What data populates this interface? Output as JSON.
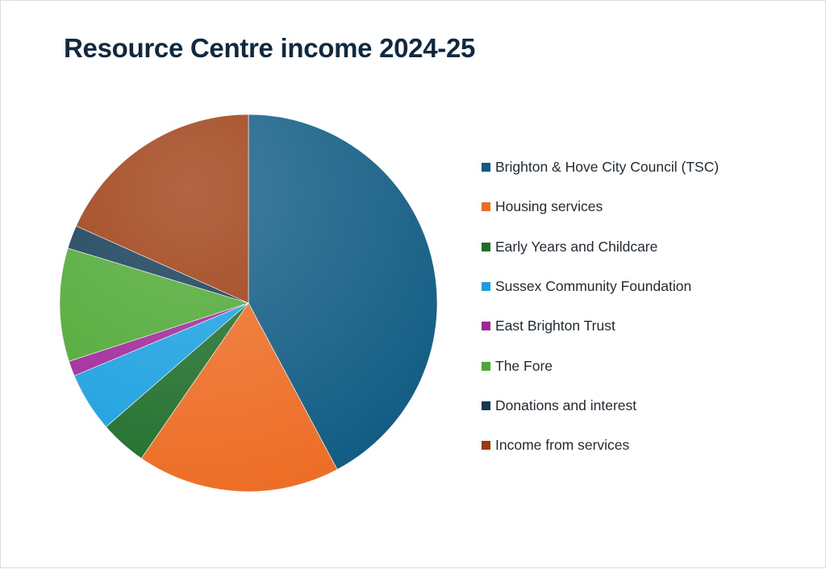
{
  "chart_data": {
    "type": "pie",
    "title": "Resource Centre income 2024-25",
    "legend_position": "right",
    "slices": [
      {
        "label": "Brighton & Hove City Council (TSC)",
        "value": 42.2,
        "color": "#0e5a82"
      },
      {
        "label": "Housing services",
        "value": 17.4,
        "color": "#ed6b22"
      },
      {
        "label": "Early Years and Childcare",
        "value": 4.0,
        "color": "#1e6e2a"
      },
      {
        "label": "Sussex Community Foundation",
        "value": 5.1,
        "color": "#1aa0e0"
      },
      {
        "label": "East Brighton Trust",
        "value": 1.3,
        "color": "#a0279a"
      },
      {
        "label": "The Fore",
        "value": 9.7,
        "color": "#4ca832"
      },
      {
        "label": "Donations and interest",
        "value": 2.0,
        "color": "#113a55"
      },
      {
        "label": "Income from services",
        "value": 18.3,
        "color": "#9c3a0e"
      }
    ]
  }
}
